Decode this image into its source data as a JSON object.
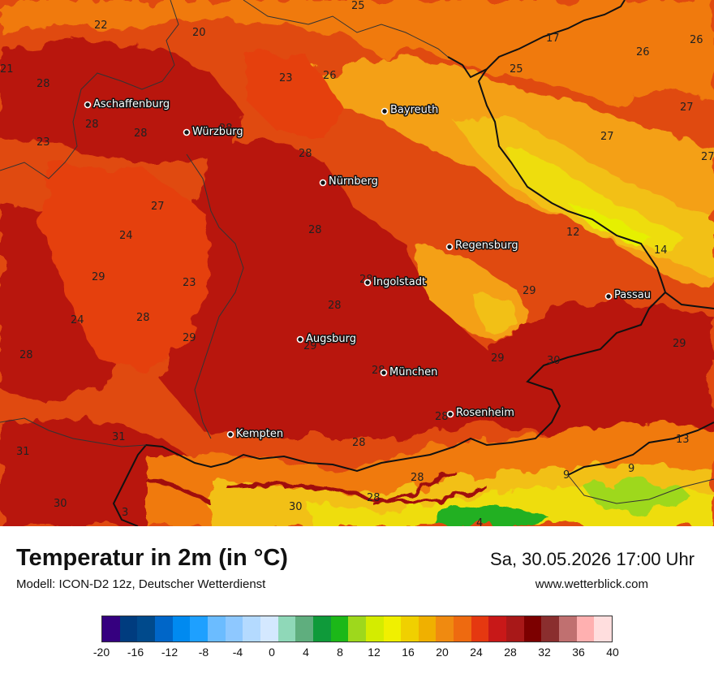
{
  "map": {
    "cities": [
      {
        "name": "Aschaffenburg"
      },
      {
        "name": "Würzburg"
      },
      {
        "name": "Bayreuth"
      },
      {
        "name": "Nürnberg"
      },
      {
        "name": "Regensburg"
      },
      {
        "name": "Ingolstadt"
      },
      {
        "name": "Passau"
      },
      {
        "name": "Augsburg"
      },
      {
        "name": "München"
      },
      {
        "name": "Rosenheim"
      },
      {
        "name": "Kempten"
      }
    ],
    "temperature_labels": [
      "25",
      "22",
      "20",
      "17",
      "26",
      "21",
      "28",
      "23",
      "26",
      "25",
      "26",
      "28",
      "28",
      "28",
      "27",
      "23",
      "27",
      "28",
      "27",
      "27",
      "24",
      "28",
      "12",
      "14",
      "29",
      "23",
      "28",
      "28",
      "29",
      "24",
      "28",
      "29",
      "29",
      "28",
      "29",
      "30",
      "29",
      "28",
      "28",
      "31",
      "13",
      "31",
      "28",
      "9",
      "9",
      "30",
      "28",
      "28",
      "30",
      "3",
      "4"
    ],
    "region_colors": {
      "deep_red": "#b8150f",
      "red": "#d22612",
      "red_orange": "#e53f10",
      "orange": "#f07a10",
      "light_orange": "#f4a014",
      "yellow_orange": "#f2c015",
      "yellow": "#eedd10",
      "yellow_green": "#e6f000",
      "green": "#22b022",
      "dark_red": "#7a0a0a"
    }
  },
  "footer": {
    "title": "Temperatur in 2m (in °C)",
    "model": "Modell: ICON-D2 12z, Deutscher Wetterdienst",
    "datetime": "Sa, 30.05.2026 17:00 Uhr",
    "website": "www.wetterblick.com"
  },
  "legend": {
    "colors": [
      "#35007f",
      "#003c7f",
      "#004a8c",
      "#0066c8",
      "#008af0",
      "#1ea0ff",
      "#6bbcff",
      "#8ec8ff",
      "#b4daff",
      "#d4e8ff",
      "#8fd8b8",
      "#5fae7e",
      "#0f9a3a",
      "#1cb818",
      "#9ed81c",
      "#d4ec00",
      "#f0f000",
      "#f0d000",
      "#f0b000",
      "#f08a10",
      "#ee6a10",
      "#e53810",
      "#c81818",
      "#a81818",
      "#7c0000",
      "#8a2e2e",
      "#c07070",
      "#ffb0b0",
      "#ffdede"
    ],
    "ticks": [
      "-20",
      "-16",
      "-12",
      "-8",
      "-4",
      "0",
      "4",
      "8",
      "12",
      "16",
      "20",
      "24",
      "28",
      "32",
      "36",
      "40"
    ]
  }
}
